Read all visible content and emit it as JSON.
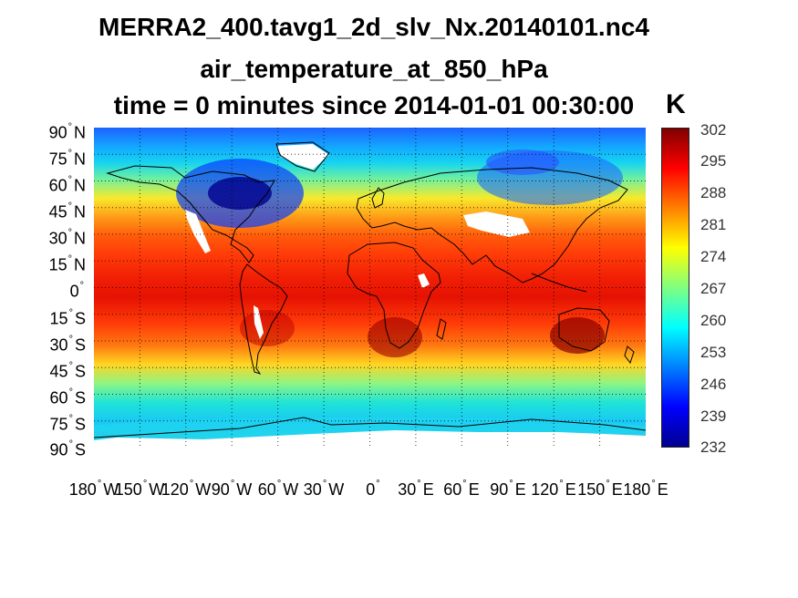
{
  "title": {
    "line1": "MERRA2_400.tavg1_2d_slv_Nx.20140101.nc4",
    "line2": "air_temperature_at_850_hPa",
    "line3": "time = 0 minutes since 2014-01-01 00:30:00"
  },
  "map": {
    "projection": "equirectangular",
    "lat_range": [
      -90,
      90
    ],
    "lon_range": [
      -180,
      180
    ],
    "grid": "dotted",
    "coastlines": true,
    "missing_data_color": "#ffffff",
    "y_tick_labels": [
      {
        "num": "90",
        "hemi": "N"
      },
      {
        "num": "75",
        "hemi": "N"
      },
      {
        "num": "60",
        "hemi": "N"
      },
      {
        "num": "45",
        "hemi": "N"
      },
      {
        "num": "30",
        "hemi": "N"
      },
      {
        "num": "15",
        "hemi": "N"
      },
      {
        "num": "0",
        "hemi": ""
      },
      {
        "num": "15",
        "hemi": "S"
      },
      {
        "num": "30",
        "hemi": "S"
      },
      {
        "num": "45",
        "hemi": "S"
      },
      {
        "num": "60",
        "hemi": "S"
      },
      {
        "num": "75",
        "hemi": "S"
      },
      {
        "num": "90",
        "hemi": "S"
      }
    ],
    "x_tick_labels": [
      {
        "num": "180",
        "hemi": "W"
      },
      {
        "num": "150",
        "hemi": "W"
      },
      {
        "num": "120",
        "hemi": "W"
      },
      {
        "num": "90",
        "hemi": "W"
      },
      {
        "num": "60",
        "hemi": "W"
      },
      {
        "num": "30",
        "hemi": "W"
      },
      {
        "num": "0",
        "hemi": ""
      },
      {
        "num": "30",
        "hemi": "E"
      },
      {
        "num": "60",
        "hemi": "E"
      },
      {
        "num": "90",
        "hemi": "E"
      },
      {
        "num": "120",
        "hemi": "E"
      },
      {
        "num": "150",
        "hemi": "E"
      },
      {
        "num": "180",
        "hemi": "E"
      }
    ]
  },
  "colorbar": {
    "unit": "K",
    "ticks": [
      "302",
      "295",
      "288",
      "281",
      "274",
      "267",
      "260",
      "253",
      "246",
      "239",
      "232"
    ],
    "range": [
      232,
      302
    ],
    "colormap": "jet"
  }
}
